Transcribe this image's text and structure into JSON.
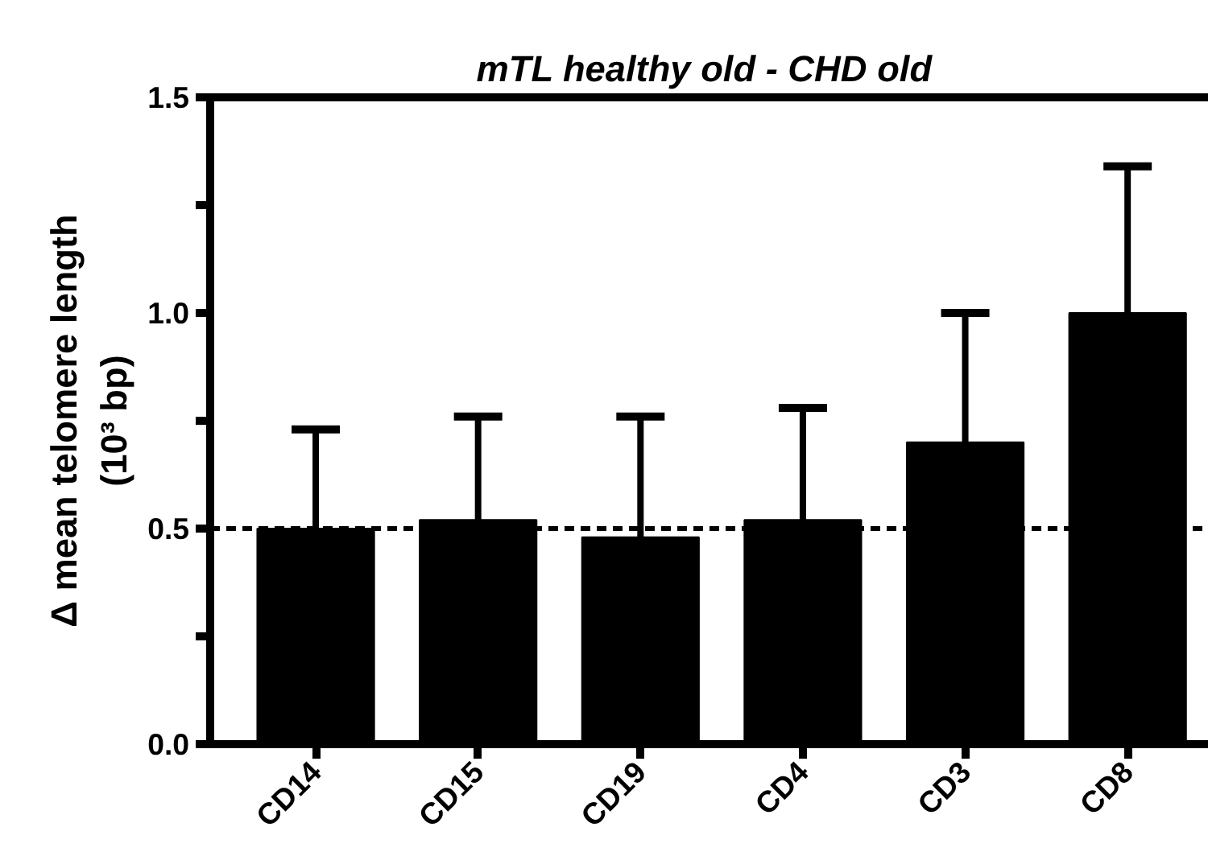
{
  "chart_data": {
    "type": "bar",
    "title": "mTL healthy old  - CHD old",
    "ylabel": "Δ mean telomere length\n(10³ bp)",
    "categories": [
      "CD14",
      "CD15",
      "CD19",
      "CD4",
      "CD3",
      "CD8"
    ],
    "values": [
      0.5,
      0.52,
      0.48,
      0.52,
      0.7,
      1.0
    ],
    "errors": [
      [
        0.5,
        0.73
      ],
      [
        0.52,
        0.76
      ],
      [
        0.48,
        0.76
      ],
      [
        0.52,
        0.78
      ],
      [
        0.7,
        1.0
      ],
      [
        1.0,
        1.34
      ]
    ],
    "color": "#000000",
    "ylim": [
      0,
      1.5
    ],
    "yticks": [
      {
        "value": 0,
        "label": "0.0"
      },
      {
        "value": 0.25,
        "label": null
      },
      {
        "value": 0.5,
        "label": "0.5"
      },
      {
        "value": 0.75,
        "label": null
      },
      {
        "value": 1,
        "label": "1.0"
      },
      {
        "value": 1.25,
        "label": null
      },
      {
        "value": 1.5,
        "label": "1.5"
      }
    ],
    "ref_lines": [
      {
        "axis": "y",
        "value": 0.5,
        "label": null,
        "line_style": "dashed",
        "color": "#000000"
      }
    ],
    "grid": false
  }
}
